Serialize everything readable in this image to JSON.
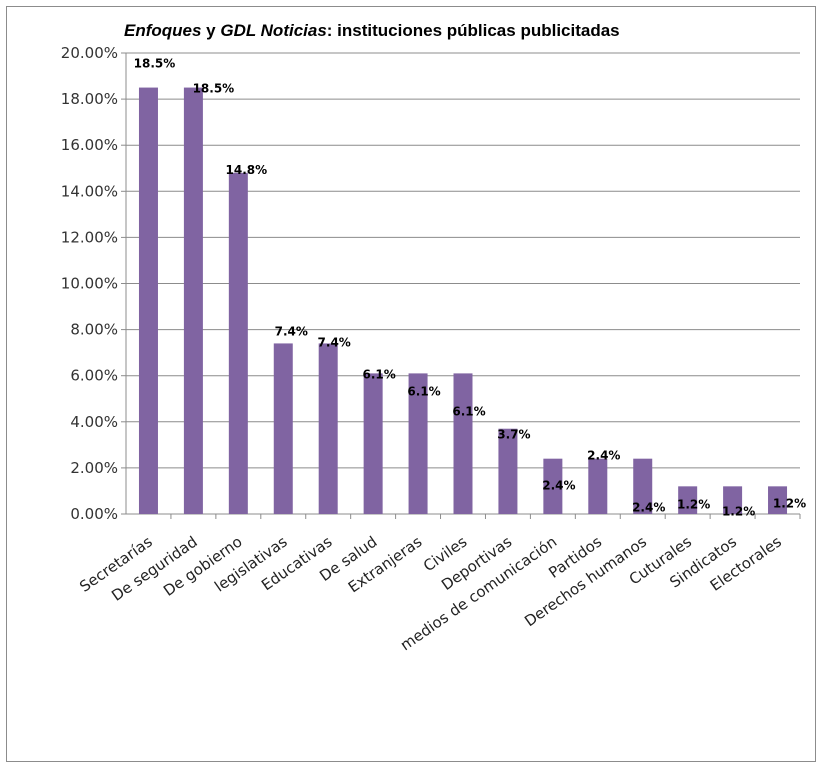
{
  "chart_data": {
    "type": "bar",
    "title_part1": "Enfoques",
    "title_part2": " y ",
    "title_part3": "GDL Noticias",
    "title_part4": ": instituciones públicas publicitadas",
    "categories": [
      "Secretarías",
      "De seguridad",
      "De gobierno",
      "legislativas",
      "Educativas",
      "De salud",
      "Extranjeras",
      "Civiles",
      "Deportivas",
      "medios de comunicación",
      "Partidos",
      "Derechos humanos",
      "Cuturales",
      "Sindicatos",
      "Electorales"
    ],
    "values": [
      18.5,
      18.5,
      14.8,
      7.4,
      7.4,
      6.1,
      6.1,
      6.1,
      3.7,
      2.4,
      2.4,
      2.4,
      1.2,
      1.2,
      1.2
    ],
    "data_labels": [
      "18.5%",
      "18.5%",
      "14.8%",
      "7.4%",
      "7.4%",
      "6.1%",
      "6.1%",
      "6.1%",
      "3.7%",
      "2.4%",
      "2.4%",
      "2.4%",
      "1.2%",
      "1.2%",
      "1.2%"
    ],
    "yticks": [
      "0.00%",
      "2.00%",
      "4.00%",
      "6.00%",
      "8.00%",
      "10.00%",
      "12.00%",
      "14.00%",
      "16.00%",
      "18.00%",
      "20.00%"
    ],
    "ylim": [
      0,
      20
    ],
    "grid": true,
    "bar_color": "#8064a2",
    "legend": "none"
  }
}
